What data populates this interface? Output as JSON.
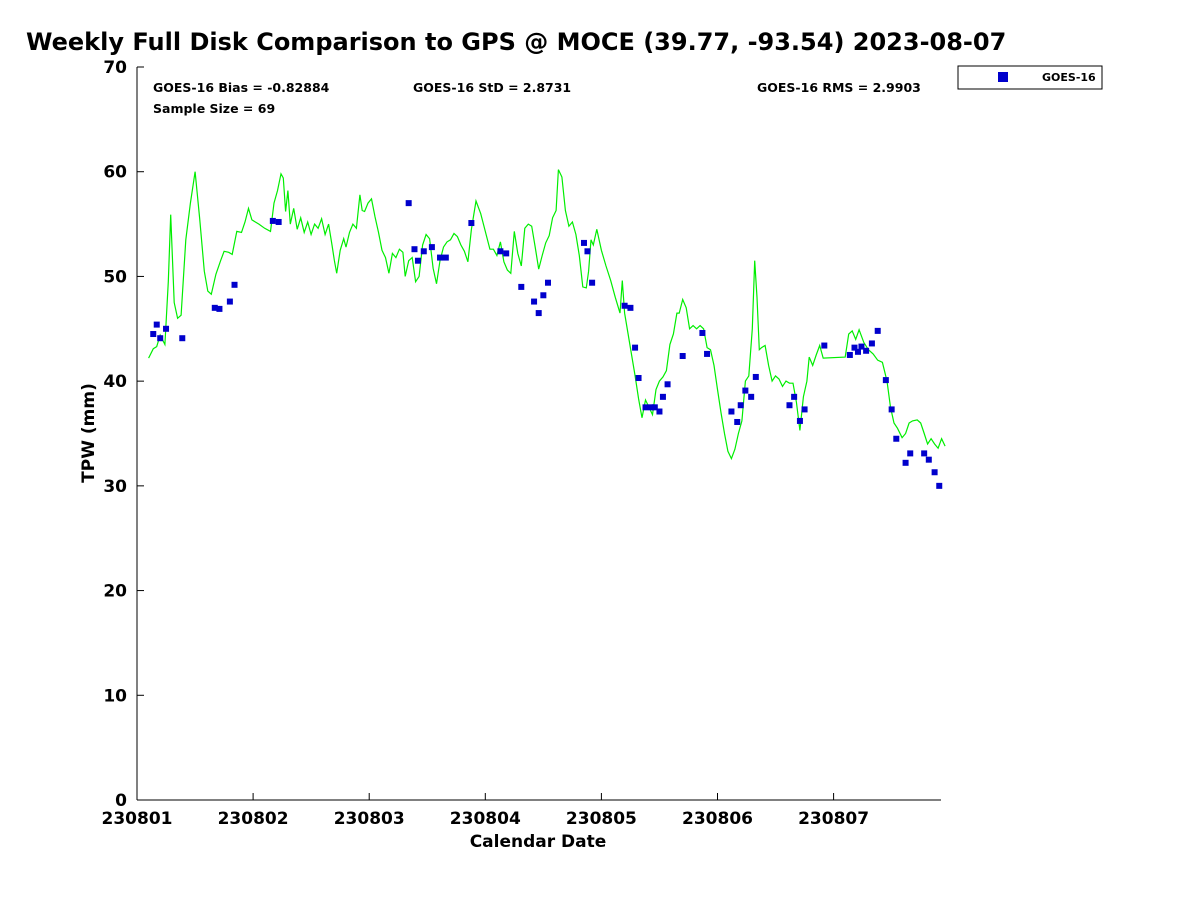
{
  "chart_data": {
    "type": "scatter",
    "title": "Weekly Full Disk Comparison to GPS @ MOCE (39.77, -93.54) 2023-08-07",
    "xlabel": "Calendar Date",
    "ylabel": "TPW (mm)",
    "xlim": [
      0,
      6.96
    ],
    "ylim": [
      0,
      70
    ],
    "x_ticks": [
      {
        "value": 0,
        "label": "230801"
      },
      {
        "value": 1,
        "label": "230802"
      },
      {
        "value": 2,
        "label": "230803"
      },
      {
        "value": 3,
        "label": "230804"
      },
      {
        "value": 4,
        "label": "230805"
      },
      {
        "value": 5,
        "label": "230806"
      },
      {
        "value": 6,
        "label": "230807"
      }
    ],
    "y_ticks": [
      0,
      10,
      20,
      30,
      40,
      50,
      60,
      70
    ],
    "stats": {
      "bias": "GOES-16 Bias = -0.82884",
      "std": "GOES-16 StD = 2.8731",
      "rms": "GOES-16 RMS = 2.9903",
      "sample_size": "Sample Size = 69"
    },
    "legend": {
      "position": "top-right",
      "entries": [
        "GOES-16"
      ]
    },
    "series": [
      {
        "name": "GOES-16",
        "kind": "scatter",
        "color": "#0000cc",
        "points": [
          [
            0.14,
            44.5
          ],
          [
            0.17,
            45.4
          ],
          [
            0.2,
            44.1
          ],
          [
            0.25,
            45.0
          ],
          [
            0.39,
            44.1
          ],
          [
            0.67,
            47.0
          ],
          [
            0.71,
            46.9
          ],
          [
            0.8,
            47.6
          ],
          [
            0.84,
            49.2
          ],
          [
            1.17,
            55.3
          ],
          [
            1.22,
            55.2
          ],
          [
            2.34,
            57.0
          ],
          [
            2.39,
            52.6
          ],
          [
            2.42,
            51.5
          ],
          [
            2.47,
            52.4
          ],
          [
            2.54,
            52.8
          ],
          [
            2.61,
            51.8
          ],
          [
            2.66,
            51.8
          ],
          [
            2.88,
            55.1
          ],
          [
            3.13,
            52.4
          ],
          [
            3.18,
            52.2
          ],
          [
            3.31,
            49.0
          ],
          [
            3.42,
            47.6
          ],
          [
            3.46,
            46.5
          ],
          [
            3.5,
            48.2
          ],
          [
            3.54,
            49.4
          ],
          [
            3.85,
            53.2
          ],
          [
            3.88,
            52.4
          ],
          [
            3.92,
            49.4
          ],
          [
            4.2,
            47.2
          ],
          [
            4.25,
            47.0
          ],
          [
            4.29,
            43.2
          ],
          [
            4.32,
            40.3
          ],
          [
            4.38,
            37.5
          ],
          [
            4.43,
            37.5
          ],
          [
            4.46,
            37.5
          ],
          [
            4.5,
            37.1
          ],
          [
            4.53,
            38.5
          ],
          [
            4.57,
            39.7
          ],
          [
            4.7,
            42.4
          ],
          [
            4.87,
            44.6
          ],
          [
            4.91,
            42.6
          ],
          [
            5.12,
            37.1
          ],
          [
            5.17,
            36.1
          ],
          [
            5.2,
            37.7
          ],
          [
            5.24,
            39.1
          ],
          [
            5.29,
            38.5
          ],
          [
            5.33,
            40.4
          ],
          [
            5.62,
            37.7
          ],
          [
            5.66,
            38.5
          ],
          [
            5.71,
            36.2
          ],
          [
            5.75,
            37.3
          ],
          [
            5.92,
            43.4
          ],
          [
            6.14,
            42.5
          ],
          [
            6.18,
            43.2
          ],
          [
            6.21,
            42.8
          ],
          [
            6.24,
            43.3
          ],
          [
            6.28,
            42.9
          ],
          [
            6.33,
            43.6
          ],
          [
            6.38,
            44.8
          ],
          [
            6.45,
            40.1
          ],
          [
            6.5,
            37.3
          ],
          [
            6.54,
            34.5
          ],
          [
            6.62,
            32.2
          ],
          [
            6.66,
            33.1
          ],
          [
            6.78,
            33.1
          ],
          [
            6.82,
            32.5
          ],
          [
            6.87,
            31.3
          ],
          [
            6.91,
            30.0
          ]
        ]
      },
      {
        "name": "GPS",
        "kind": "line",
        "color": "#00ee00",
        "points": [
          [
            0.1,
            42.2
          ],
          [
            0.14,
            43.1
          ],
          [
            0.17,
            43.3
          ],
          [
            0.2,
            44.4
          ],
          [
            0.24,
            43.5
          ],
          [
            0.27,
            49.5
          ],
          [
            0.29,
            55.9
          ],
          [
            0.32,
            47.5
          ],
          [
            0.35,
            46.0
          ],
          [
            0.38,
            46.3
          ],
          [
            0.42,
            53.5
          ],
          [
            0.46,
            57.0
          ],
          [
            0.5,
            60.0
          ],
          [
            0.54,
            55.5
          ],
          [
            0.58,
            50.5
          ],
          [
            0.61,
            48.6
          ],
          [
            0.64,
            48.3
          ],
          [
            0.68,
            50.2
          ],
          [
            0.72,
            51.5
          ],
          [
            0.75,
            52.4
          ],
          [
            0.79,
            52.3
          ],
          [
            0.82,
            52.1
          ],
          [
            0.86,
            54.3
          ],
          [
            0.9,
            54.2
          ],
          [
            0.93,
            55.2
          ],
          [
            0.96,
            56.5
          ],
          [
            0.99,
            55.4
          ],
          [
            1.05,
            55.0
          ],
          [
            1.1,
            54.6
          ],
          [
            1.15,
            54.3
          ],
          [
            1.18,
            57.0
          ],
          [
            1.21,
            58.2
          ],
          [
            1.24,
            59.8
          ],
          [
            1.26,
            59.4
          ],
          [
            1.28,
            56.2
          ],
          [
            1.3,
            58.2
          ],
          [
            1.32,
            55.0
          ],
          [
            1.35,
            56.5
          ],
          [
            1.38,
            54.5
          ],
          [
            1.41,
            55.6
          ],
          [
            1.44,
            54.2
          ],
          [
            1.47,
            55.2
          ],
          [
            1.5,
            54.0
          ],
          [
            1.53,
            55.0
          ],
          [
            1.56,
            54.6
          ],
          [
            1.59,
            55.5
          ],
          [
            1.62,
            54.0
          ],
          [
            1.65,
            55.0
          ],
          [
            1.68,
            53.0
          ],
          [
            1.7,
            51.5
          ],
          [
            1.72,
            50.3
          ],
          [
            1.75,
            52.5
          ],
          [
            1.78,
            53.6
          ],
          [
            1.8,
            52.8
          ],
          [
            1.83,
            54.2
          ],
          [
            1.86,
            55.0
          ],
          [
            1.89,
            54.6
          ],
          [
            1.92,
            57.8
          ],
          [
            1.94,
            56.3
          ],
          [
            1.96,
            56.2
          ],
          [
            1.99,
            57.0
          ],
          [
            2.02,
            57.4
          ],
          [
            2.05,
            55.7
          ],
          [
            2.08,
            54.2
          ],
          [
            2.11,
            52.5
          ],
          [
            2.14,
            51.8
          ],
          [
            2.17,
            50.3
          ],
          [
            2.2,
            52.2
          ],
          [
            2.23,
            51.8
          ],
          [
            2.26,
            52.6
          ],
          [
            2.29,
            52.3
          ],
          [
            2.31,
            50.0
          ],
          [
            2.34,
            51.5
          ],
          [
            2.37,
            51.8
          ],
          [
            2.4,
            49.5
          ],
          [
            2.43,
            50.0
          ],
          [
            2.46,
            53.0
          ],
          [
            2.49,
            54.0
          ],
          [
            2.52,
            53.6
          ],
          [
            2.55,
            50.8
          ],
          [
            2.58,
            49.3
          ],
          [
            2.61,
            51.5
          ],
          [
            2.64,
            52.8
          ],
          [
            2.67,
            53.3
          ],
          [
            2.7,
            53.5
          ],
          [
            2.73,
            54.1
          ],
          [
            2.76,
            53.8
          ],
          [
            2.79,
            53.0
          ],
          [
            2.82,
            52.4
          ],
          [
            2.85,
            51.4
          ],
          [
            2.88,
            54.5
          ],
          [
            2.92,
            57.2
          ],
          [
            2.96,
            56.0
          ],
          [
            3.0,
            54.3
          ],
          [
            3.04,
            52.6
          ],
          [
            3.07,
            52.6
          ],
          [
            3.1,
            52.0
          ],
          [
            3.13,
            53.3
          ],
          [
            3.16,
            51.4
          ],
          [
            3.19,
            50.6
          ],
          [
            3.22,
            50.3
          ],
          [
            3.25,
            54.3
          ],
          [
            3.28,
            52.2
          ],
          [
            3.31,
            51.0
          ],
          [
            3.34,
            54.6
          ],
          [
            3.37,
            55.0
          ],
          [
            3.4,
            54.8
          ],
          [
            3.43,
            52.8
          ],
          [
            3.46,
            50.7
          ],
          [
            3.49,
            52.0
          ],
          [
            3.52,
            53.2
          ],
          [
            3.55,
            53.9
          ],
          [
            3.58,
            55.6
          ],
          [
            3.61,
            56.3
          ],
          [
            3.63,
            60.2
          ],
          [
            3.66,
            59.5
          ],
          [
            3.69,
            56.3
          ],
          [
            3.72,
            54.8
          ],
          [
            3.75,
            55.2
          ],
          [
            3.78,
            54.0
          ],
          [
            3.81,
            52.0
          ],
          [
            3.84,
            49.0
          ],
          [
            3.87,
            48.9
          ],
          [
            3.89,
            50.5
          ],
          [
            3.91,
            53.5
          ],
          [
            3.93,
            53.0
          ],
          [
            3.96,
            54.5
          ],
          [
            4.0,
            52.5
          ],
          [
            4.04,
            51.0
          ],
          [
            4.08,
            49.6
          ],
          [
            4.12,
            48.0
          ],
          [
            4.16,
            46.5
          ],
          [
            4.18,
            49.6
          ],
          [
            4.2,
            46.5
          ],
          [
            4.23,
            44.5
          ],
          [
            4.26,
            42.5
          ],
          [
            4.29,
            40.5
          ],
          [
            4.32,
            38.3
          ],
          [
            4.35,
            36.5
          ],
          [
            4.38,
            38.2
          ],
          [
            4.41,
            37.5
          ],
          [
            4.44,
            36.8
          ],
          [
            4.47,
            39.2
          ],
          [
            4.5,
            40.0
          ],
          [
            4.53,
            40.4
          ],
          [
            4.56,
            41.0
          ],
          [
            4.59,
            43.5
          ],
          [
            4.62,
            44.5
          ],
          [
            4.65,
            46.5
          ],
          [
            4.67,
            46.5
          ],
          [
            4.7,
            47.8
          ],
          [
            4.73,
            47.0
          ],
          [
            4.76,
            45.0
          ],
          [
            4.79,
            45.3
          ],
          [
            4.82,
            45.0
          ],
          [
            4.85,
            45.3
          ],
          [
            4.88,
            45.0
          ],
          [
            4.91,
            43.2
          ],
          [
            4.94,
            43.0
          ],
          [
            4.97,
            41.5
          ],
          [
            5.0,
            39.2
          ],
          [
            5.03,
            37.0
          ],
          [
            5.06,
            35.0
          ],
          [
            5.09,
            33.3
          ],
          [
            5.12,
            32.6
          ],
          [
            5.15,
            33.5
          ],
          [
            5.18,
            35.0
          ],
          [
            5.21,
            36.2
          ],
          [
            5.24,
            40.0
          ],
          [
            5.27,
            40.5
          ],
          [
            5.3,
            45.0
          ],
          [
            5.32,
            51.5
          ],
          [
            5.34,
            48.0
          ],
          [
            5.36,
            43.0
          ],
          [
            5.38,
            43.2
          ],
          [
            5.41,
            43.4
          ],
          [
            5.44,
            41.5
          ],
          [
            5.47,
            40.0
          ],
          [
            5.5,
            40.5
          ],
          [
            5.53,
            40.2
          ],
          [
            5.56,
            39.5
          ],
          [
            5.59,
            40.0
          ],
          [
            5.62,
            39.8
          ],
          [
            5.65,
            39.8
          ],
          [
            5.68,
            38.0
          ],
          [
            5.71,
            35.3
          ],
          [
            5.74,
            38.5
          ],
          [
            5.77,
            40.0
          ],
          [
            5.79,
            42.3
          ],
          [
            5.82,
            41.5
          ],
          [
            5.85,
            42.5
          ],
          [
            5.88,
            43.4
          ],
          [
            5.91,
            42.2
          ],
          [
            6.1,
            42.3
          ],
          [
            6.13,
            44.5
          ],
          [
            6.16,
            44.8
          ],
          [
            6.19,
            44.0
          ],
          [
            6.22,
            44.9
          ],
          [
            6.26,
            43.7
          ],
          [
            6.3,
            43.0
          ],
          [
            6.34,
            42.6
          ],
          [
            6.38,
            42.0
          ],
          [
            6.42,
            41.8
          ],
          [
            6.46,
            40.0
          ],
          [
            6.49,
            37.5
          ],
          [
            6.52,
            36.0
          ],
          [
            6.55,
            35.5
          ],
          [
            6.59,
            34.6
          ],
          [
            6.62,
            35.0
          ],
          [
            6.65,
            36.0
          ],
          [
            6.68,
            36.2
          ],
          [
            6.72,
            36.3
          ],
          [
            6.75,
            36.0
          ],
          [
            6.78,
            35.0
          ],
          [
            6.81,
            34.0
          ],
          [
            6.84,
            34.5
          ],
          [
            6.87,
            34.0
          ],
          [
            6.9,
            33.6
          ],
          [
            6.93,
            34.5
          ],
          [
            6.96,
            33.8
          ]
        ]
      }
    ]
  }
}
